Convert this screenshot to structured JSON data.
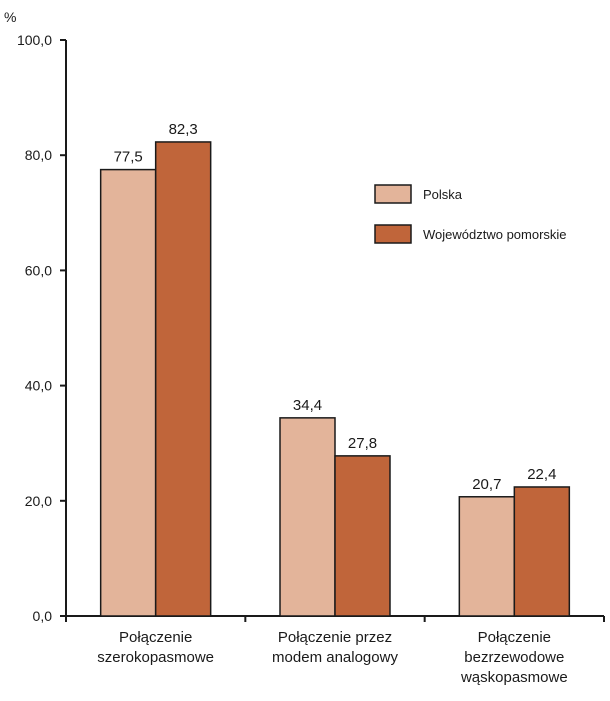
{
  "chart_data": {
    "type": "bar",
    "unit": "%",
    "categories": [
      [
        "Połączenie",
        "szerokopasmowe"
      ],
      [
        "Połączenie przez",
        "modem analogowy"
      ],
      [
        "Połączenie",
        "bezrzewodowe",
        "wąskopasmowe"
      ]
    ],
    "series": [
      {
        "name": "Polska",
        "color": "#e3b49a",
        "values": [
          77.5,
          34.4,
          20.7
        ],
        "labels": [
          "77,5",
          "34,4",
          "20,7"
        ]
      },
      {
        "name": "Województwo pomorskie",
        "color": "#c0653a",
        "values": [
          82.3,
          27.8,
          22.4
        ],
        "labels": [
          "82,3",
          "27,8",
          "22,4"
        ]
      }
    ],
    "ylim": [
      0,
      100
    ],
    "yticks": [
      0,
      20,
      40,
      60,
      80,
      100
    ],
    "ytick_labels": [
      "0,0",
      "20,0",
      "40,0",
      "60,0",
      "80,0",
      "100,0"
    ],
    "grid": false,
    "legend": "right"
  }
}
